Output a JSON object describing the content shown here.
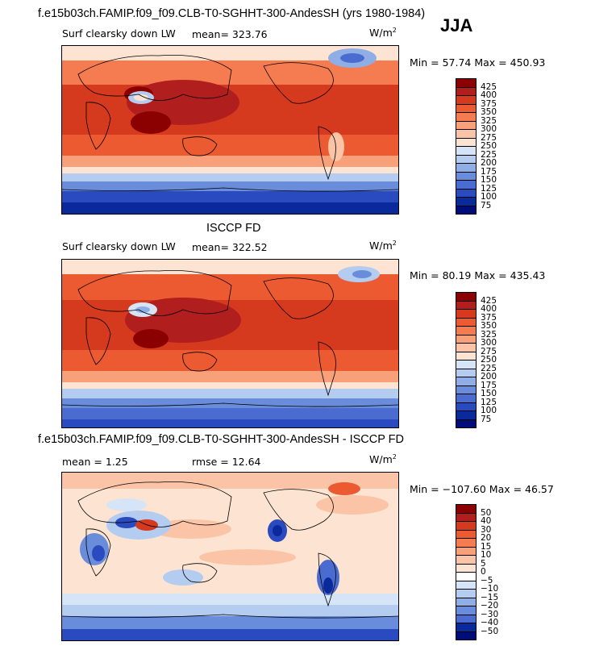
{
  "header": {
    "title": "f.e15b03ch.FAMIP.f09_f09.CLB-T0-SGHHT-300-AndesSH (yrs 1980-1984)",
    "season": "JJA"
  },
  "panels": [
    {
      "id": "model",
      "field_label": "Surf clearsky down LW",
      "mean_text": "mean= 323.76",
      "units": "W/m",
      "units_exp": "2",
      "minmax_text": "Min =  57.74 Max = 450.93",
      "colorbar_ticks": [
        "425",
        "400",
        "375",
        "350",
        "325",
        "300",
        "275",
        "250",
        "225",
        "200",
        "175",
        "150",
        "125",
        "100",
        "75"
      ]
    },
    {
      "id": "obs",
      "subtitle": "ISCCP FD",
      "field_label": "Surf clearsky down LW",
      "mean_text": "mean= 322.52",
      "units": "W/m",
      "units_exp": "2",
      "minmax_text": "Min =  80.19 Max = 435.43",
      "colorbar_ticks": [
        "425",
        "400",
        "375",
        "350",
        "325",
        "300",
        "275",
        "250",
        "225",
        "200",
        "175",
        "150",
        "125",
        "100",
        "75"
      ]
    },
    {
      "id": "diff",
      "subtitle": "f.e15b03ch.FAMIP.f09_f09.CLB-T0-SGHHT-300-AndesSH - ISCCP FD",
      "mean_text": "mean =    1.25",
      "rmse_text": "rmse =   12.64",
      "units": "W/m",
      "units_exp": "2",
      "minmax_text": "Min = −107.60 Max =  46.57",
      "colorbar_ticks": [
        "50",
        "40",
        "30",
        "20",
        "15",
        "10",
        "5",
        "0",
        "−5",
        "−10",
        "−15",
        "−20",
        "−30",
        "−40",
        "−50"
      ]
    }
  ],
  "colors": {
    "abs_scale": [
      "#8b0000",
      "#b01e1e",
      "#d63a1e",
      "#eb5a30",
      "#f47c50",
      "#f8a07a",
      "#fbc4a6",
      "#fde4d2",
      "#d6e4f7",
      "#b4ccef",
      "#8faee6",
      "#6a8ddb",
      "#4a6cd0",
      "#2a4ac0",
      "#0a2a9c",
      "#000c78"
    ],
    "diff_scale": [
      "#8b0000",
      "#b01e1e",
      "#d63a1e",
      "#eb5a30",
      "#f47c50",
      "#f8a07a",
      "#fbc4a6",
      "#fde4d2",
      "#ffffff",
      "#d6e4f7",
      "#b4ccef",
      "#8faee6",
      "#6a8ddb",
      "#4a6cd0",
      "#0a2a9c",
      "#000c78"
    ]
  },
  "chart_data": [
    {
      "type": "heatmap",
      "title": "Surf clearsky down LW",
      "subtitle": "f.e15b03ch.FAMIP.f09_f09.CLB-T0-SGHHT-300-AndesSH (yrs 1980-1984) JJA",
      "units": "W/m2",
      "mean": 323.76,
      "min": 57.74,
      "max": 450.93,
      "levels": [
        75,
        100,
        125,
        150,
        175,
        200,
        225,
        250,
        275,
        300,
        325,
        350,
        375,
        400,
        425
      ]
    },
    {
      "type": "heatmap",
      "title": "ISCCP FD Surf clearsky down LW",
      "units": "W/m2",
      "mean": 322.52,
      "min": 80.19,
      "max": 435.43,
      "levels": [
        75,
        100,
        125,
        150,
        175,
        200,
        225,
        250,
        275,
        300,
        325,
        350,
        375,
        400,
        425
      ]
    },
    {
      "type": "heatmap",
      "title": "f.e15b03ch.FAMIP.f09_f09.CLB-T0-SGHHT-300-AndesSH - ISCCP FD",
      "units": "W/m2",
      "mean": 1.25,
      "rmse": 12.64,
      "min": -107.6,
      "max": 46.57,
      "levels": [
        -50,
        -40,
        -30,
        -20,
        -15,
        -10,
        -5,
        0,
        5,
        10,
        15,
        20,
        30,
        40,
        50
      ]
    }
  ]
}
